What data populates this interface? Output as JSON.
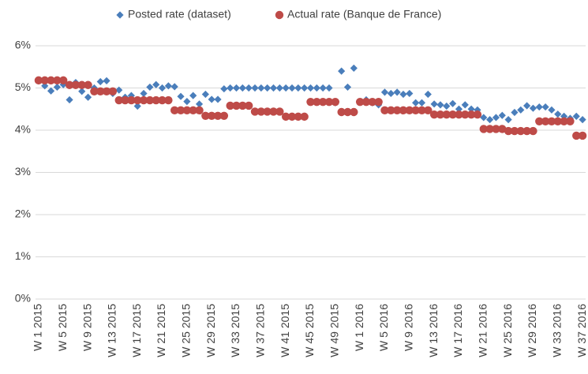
{
  "chart_data": {
    "type": "scatter",
    "categories": [
      "W 1 2015",
      null,
      null,
      null,
      "W 5 2015",
      null,
      null,
      null,
      "W 9 2015",
      null,
      null,
      null,
      "W 13 2015",
      null,
      null,
      null,
      "W 17 2015",
      null,
      null,
      null,
      "W 21 2015",
      null,
      null,
      null,
      "W 25 2015",
      null,
      null,
      null,
      "W 29 2015",
      null,
      null,
      null,
      "W 33 2015",
      null,
      null,
      null,
      "W 37 2015",
      null,
      null,
      null,
      "W 41 2015",
      null,
      null,
      null,
      "W 45 2015",
      null,
      null,
      null,
      "W 49 2015",
      null,
      null,
      null,
      "W 1 2016",
      null,
      null,
      null,
      "W 5 2016",
      null,
      null,
      null,
      "W 9 2016",
      null,
      null,
      null,
      "W 13 2016",
      null,
      null,
      null,
      "W 17 2016",
      null,
      null,
      null,
      "W 21 2016",
      null,
      null,
      null,
      "W 25 2016",
      null,
      null,
      null,
      "W 29 2016",
      null,
      null,
      null,
      "W 33 2016",
      null,
      null,
      null,
      "W 37 2016"
    ],
    "series": [
      {
        "name": "Posted rate (dataset)",
        "color": "#4a7ebb",
        "marker": "diamond",
        "values": [
          5.18,
          5.05,
          4.93,
          5.02,
          5.08,
          4.72,
          5.13,
          4.92,
          4.78,
          5.0,
          5.15,
          5.17,
          4.87,
          4.95,
          4.78,
          4.82,
          4.57,
          4.87,
          5.02,
          5.08,
          5.0,
          5.05,
          5.03,
          4.8,
          4.68,
          4.82,
          4.62,
          4.85,
          4.73,
          4.73,
          4.98,
          5.0,
          5.0,
          5.0,
          5.0,
          5.0,
          5.0,
          5.0,
          5.0,
          5.0,
          5.0,
          5.0,
          5.0,
          5.0,
          5.0,
          5.0,
          5.0,
          5.0,
          4.65,
          5.4,
          5.02,
          5.47,
          4.68,
          4.72,
          4.65,
          4.6,
          4.9,
          4.87,
          4.9,
          4.85,
          4.87,
          4.65,
          4.65,
          4.85,
          4.62,
          4.6,
          4.57,
          4.63,
          4.5,
          4.6,
          4.5,
          4.48,
          4.3,
          4.25,
          4.3,
          4.35,
          4.25,
          4.42,
          4.48,
          4.58,
          4.52,
          4.55,
          4.55,
          4.48,
          4.38,
          4.33,
          4.28,
          4.33,
          4.25
        ]
      },
      {
        "name": "Actual rate (Banque de France)",
        "color": "#be4b48",
        "marker": "circle",
        "values": [
          5.18,
          5.18,
          5.18,
          5.18,
          5.18,
          5.07,
          5.07,
          5.07,
          5.07,
          4.92,
          4.92,
          4.92,
          4.92,
          4.71,
          4.71,
          4.71,
          4.71,
          4.71,
          4.71,
          4.71,
          4.71,
          4.71,
          4.47,
          4.47,
          4.47,
          4.47,
          4.47,
          4.34,
          4.34,
          4.34,
          4.34,
          4.58,
          4.58,
          4.58,
          4.58,
          4.44,
          4.44,
          4.44,
          4.44,
          4.44,
          4.32,
          4.32,
          4.32,
          4.32,
          4.67,
          4.67,
          4.67,
          4.67,
          4.67,
          4.43,
          4.43,
          4.43,
          4.67,
          4.67,
          4.67,
          4.67,
          4.47,
          4.47,
          4.47,
          4.47,
          4.47,
          4.47,
          4.47,
          4.47,
          4.37,
          4.37,
          4.37,
          4.37,
          4.37,
          4.37,
          4.37,
          4.37,
          4.03,
          4.03,
          4.03,
          4.03,
          3.98,
          3.98,
          3.98,
          3.98,
          3.98,
          4.21,
          4.21,
          4.21,
          4.21,
          4.21,
          4.21,
          3.87,
          3.87
        ]
      }
    ],
    "ylim": [
      0,
      6
    ],
    "yticks": [
      {
        "value": 0,
        "label": "0%"
      },
      {
        "value": 1,
        "label": "1%"
      },
      {
        "value": 2,
        "label": "2%"
      },
      {
        "value": 3,
        "label": "3%"
      },
      {
        "value": 4,
        "label": "4%"
      },
      {
        "value": 5,
        "label": "5%"
      },
      {
        "value": 6,
        "label": "6%"
      }
    ],
    "grid": true,
    "legend": "top"
  }
}
